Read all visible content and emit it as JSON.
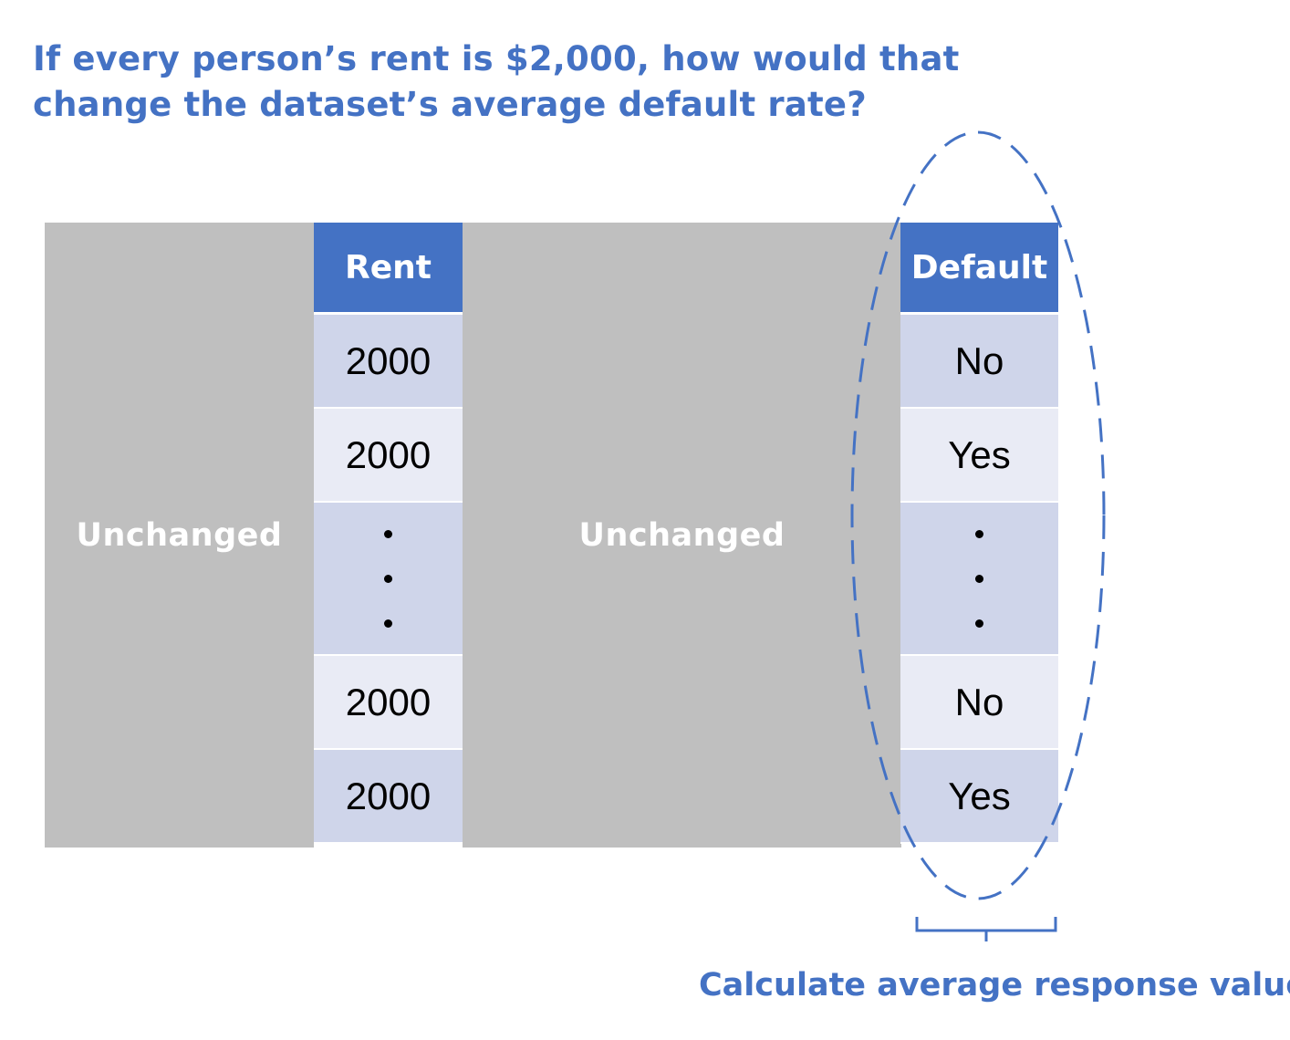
{
  "question": {
    "line1": "If every person’s rent is $2,000, how would that",
    "line2": "change the dataset’s average default rate?"
  },
  "blocks": {
    "left_label": "Unchanged",
    "mid_label": "Unchanged"
  },
  "rent_column": {
    "header": "Rent",
    "rows": [
      "2000",
      "2000",
      "2000",
      "2000"
    ]
  },
  "default_column": {
    "header": "Default",
    "rows": [
      "No",
      "Yes",
      "No",
      "Yes"
    ]
  },
  "caption": "Calculate average response value",
  "colors": {
    "accent": "#4472C4",
    "gray_block": "#BFBFBF",
    "row_dark": "#CFD5EA",
    "row_light": "#E9EBF5"
  }
}
